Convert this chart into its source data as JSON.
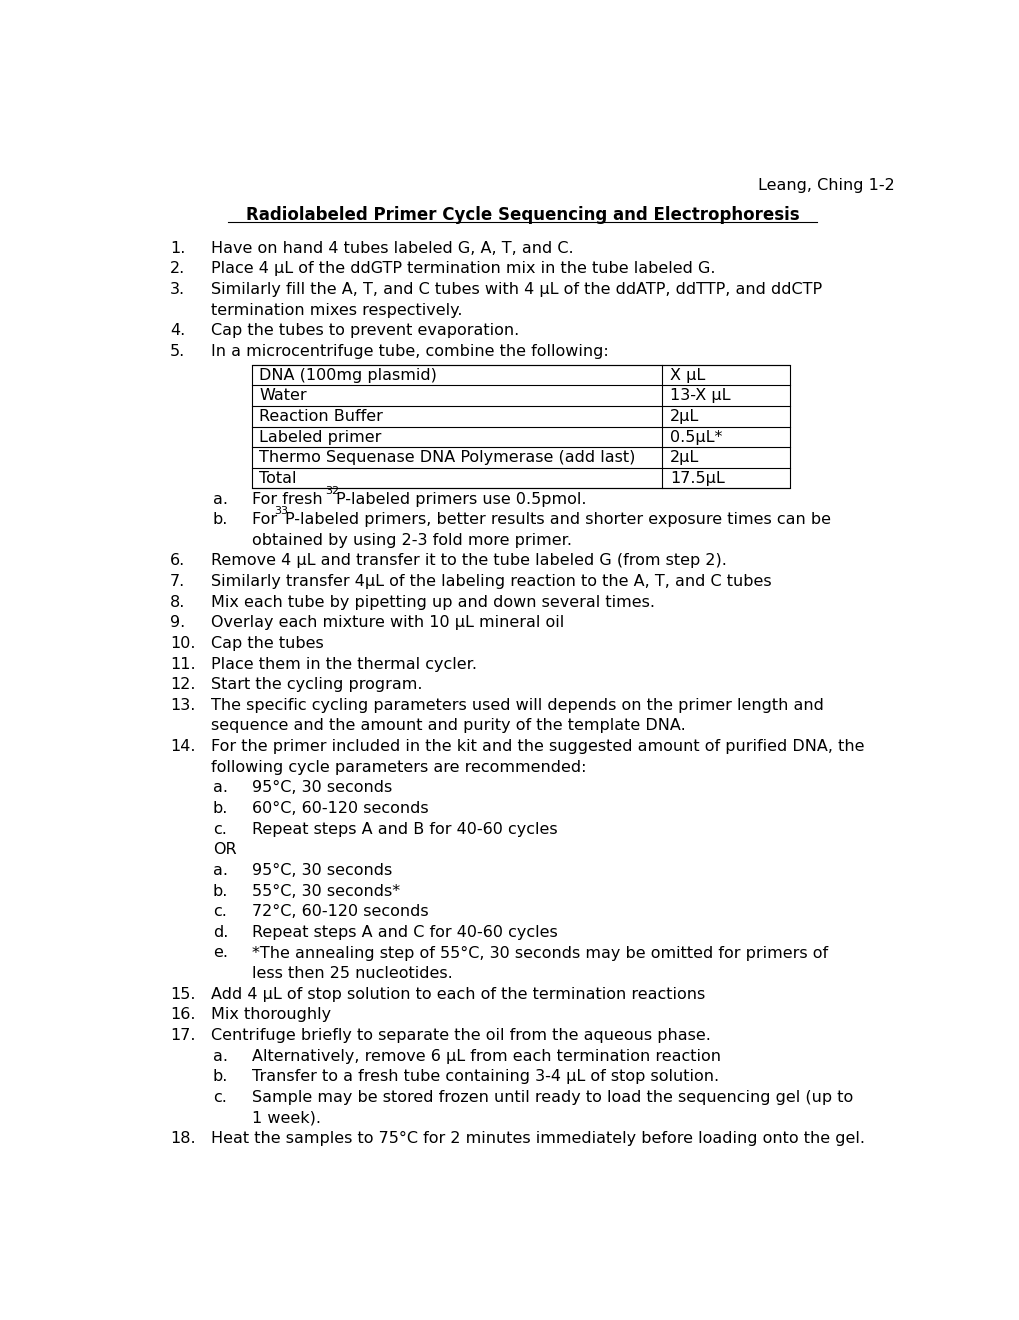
{
  "header": "Leang, Ching 1-2",
  "title": "Radiolabeled Primer Cycle Sequencing and Electrophoresis",
  "bg_color": "#ffffff",
  "text_color": "#000000",
  "font_size": 11.5,
  "table": {
    "rows": [
      [
        "DNA (100mg plasmid)",
        "X μL"
      ],
      [
        "Water",
        "13-X μL"
      ],
      [
        "Reaction Buffer",
        "2μL"
      ],
      [
        "Labeled primer",
        "0.5μL*"
      ],
      [
        "Thermo Sequenase DNA Polymerase (add last)",
        "2μL"
      ],
      [
        "Total",
        "17.5μL"
      ]
    ]
  },
  "remaining_items": [
    {
      "num": "6.",
      "text": "Remove 4 μL and transfer it to the tube labeled G (from step 2).",
      "indent": 1
    },
    {
      "num": "7.",
      "text": "Similarly transfer 4μL of the labeling reaction to the A, T, and C tubes",
      "indent": 1
    },
    {
      "num": "8.",
      "text": "Mix each tube by pipetting up and down several times.",
      "indent": 1
    },
    {
      "num": "9.",
      "text": "Overlay each mixture with 10 μL mineral oil",
      "indent": 1
    },
    {
      "num": "10.",
      "text": "Cap the tubes",
      "indent": 1
    },
    {
      "num": "11.",
      "text": "Place them in the thermal cycler.",
      "indent": 1
    },
    {
      "num": "12.",
      "text": "Start the cycling program.",
      "indent": 1
    },
    {
      "num": "13.",
      "text": "The specific cycling parameters used will depends on the primer length and\nsequence and the amount and purity of the template DNA.",
      "indent": 1
    },
    {
      "num": "14.",
      "text": "For the primer included in the kit and the suggested amount of purified DNA, the\nfollowing cycle parameters are recommended:",
      "indent": 1
    },
    {
      "num": "a.",
      "text": "95°C, 30 seconds",
      "indent": 2
    },
    {
      "num": "b.",
      "text": "60°C, 60-120 seconds",
      "indent": 2
    },
    {
      "num": "c.",
      "text": "Repeat steps A and B for 40-60 cycles",
      "indent": 2
    },
    {
      "num": "OR",
      "text": "",
      "indent": 2
    },
    {
      "num": "a.",
      "text": "95°C, 30 seconds",
      "indent": 2
    },
    {
      "num": "b.",
      "text": "55°C, 30 seconds*",
      "indent": 2
    },
    {
      "num": "c.",
      "text": "72°C, 60-120 seconds",
      "indent": 2
    },
    {
      "num": "d.",
      "text": "Repeat steps A and C for 40-60 cycles",
      "indent": 2
    },
    {
      "num": "e.",
      "text": "*The annealing step of 55°C, 30 seconds may be omitted for primers of\nless then 25 nucleotides.",
      "indent": 2
    },
    {
      "num": "15.",
      "text": "Add 4 μL of stop solution to each of the termination reactions",
      "indent": 1
    },
    {
      "num": "16.",
      "text": "Mix thoroughly",
      "indent": 1
    },
    {
      "num": "17.",
      "text": "Centrifuge briefly to separate the oil from the aqueous phase.",
      "indent": 1
    },
    {
      "num": "a.",
      "text": "Alternatively, remove 6 μL from each termination reaction",
      "indent": 2
    },
    {
      "num": "b.",
      "text": "Transfer to a fresh tube containing 3-4 μL of stop solution.",
      "indent": 2
    },
    {
      "num": "c.",
      "text": "Sample may be stored frozen until ready to load the sequencing gel (up to\n1 week).",
      "indent": 2
    },
    {
      "num": "18.",
      "text": "Heat the samples to 75°C for 2 minutes immediately before loading onto the gel.",
      "indent": 1
    }
  ]
}
